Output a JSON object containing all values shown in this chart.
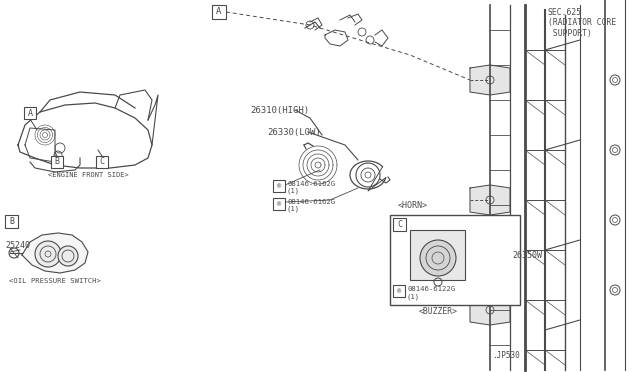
{
  "bg_color": "#ffffff",
  "lc": "#4a4a4a",
  "tc": "#4a4a4a",
  "fig_width": 6.4,
  "fig_height": 3.72,
  "dpi": 100,
  "sec625": "SEC.625\n(RADIATOR CORE\n SUPPORT)",
  "engine_front": "<ENGINE FRONT SIDE>",
  "oil_pressure": "<OIL PRESSURE SWITCH>",
  "horn_label": "<HORN>",
  "buzzer_label": "<BUZZER>",
  "high_label": "26310(HIGH)",
  "low_label": "26330(LOW)",
  "p25240": "25240",
  "p26350W": "26350W",
  "bolt_6162": "®08146-6162G\n  (1)",
  "bolt_6122": "®08146-6122G\n  (1)",
  "jp530": ".JP530"
}
